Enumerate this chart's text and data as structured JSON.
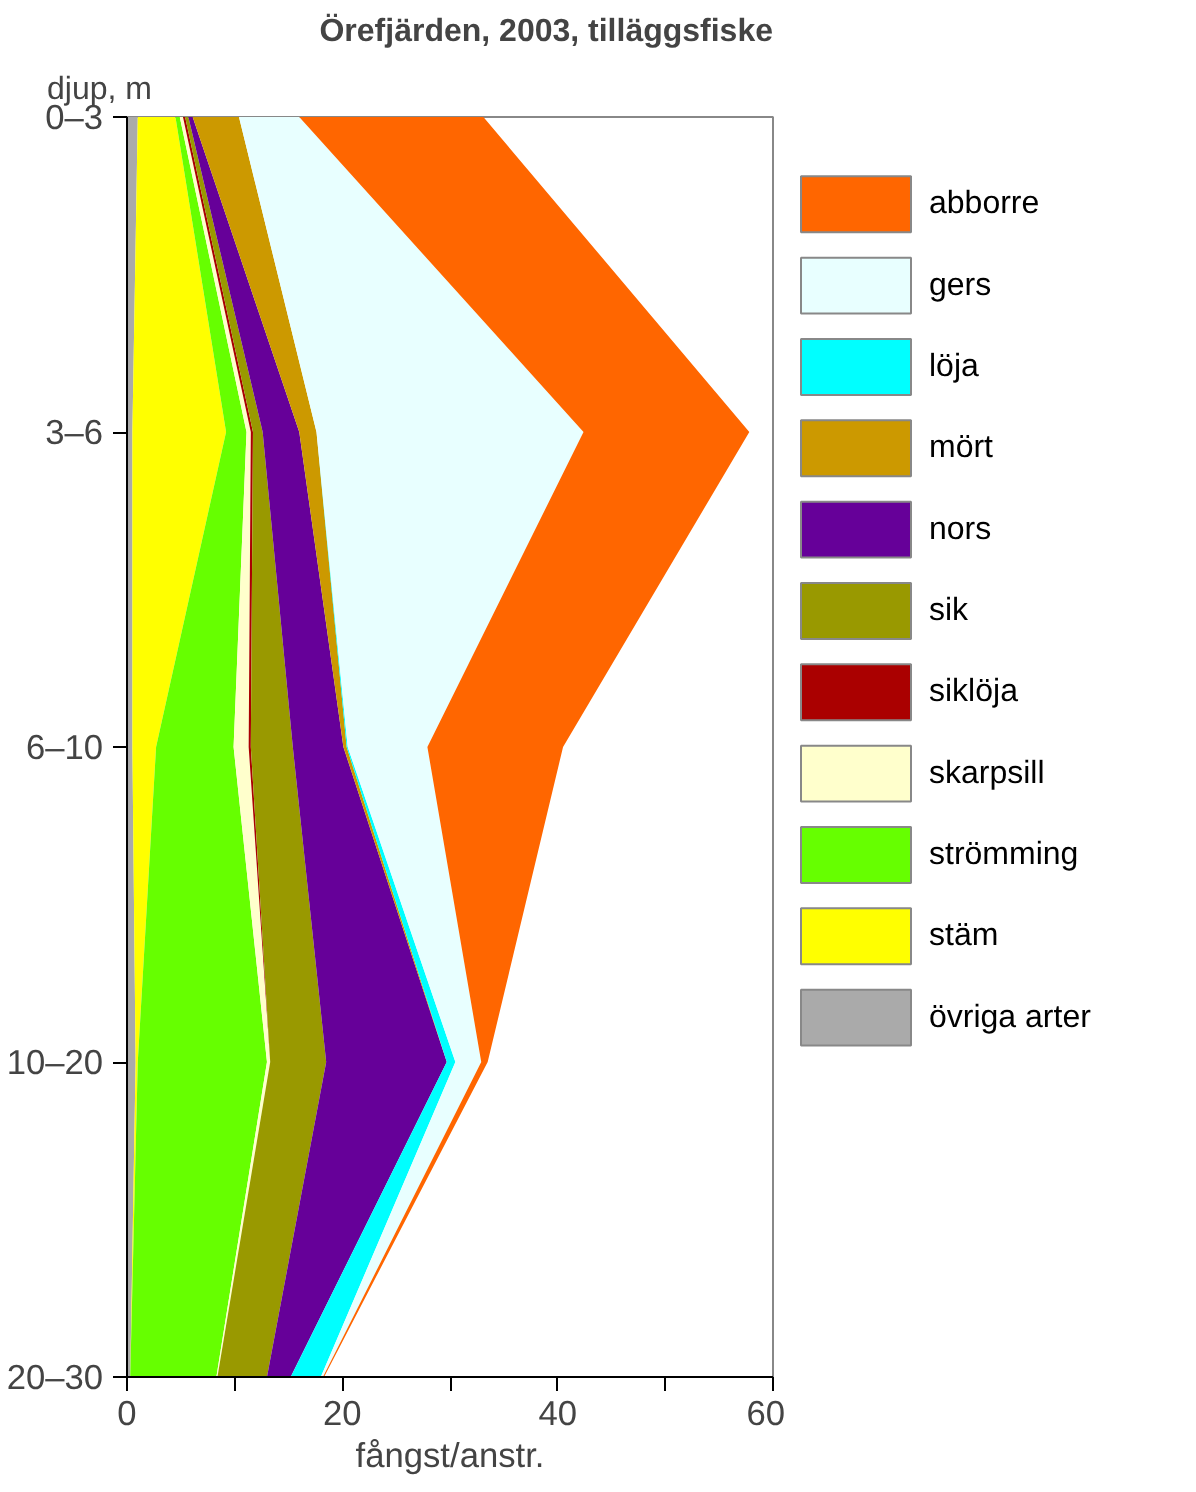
{
  "chart_data": {
    "type": "area",
    "stacked": true,
    "orientation": "horizontal",
    "title": "Örefjärden, 2003, tilläggsfiske",
    "ylabel": "djup, m",
    "xlabel": "fångst/anstr.",
    "categories": [
      "0–3",
      "3–6",
      "6–10",
      "10–20",
      "20–30"
    ],
    "xlim": [
      0,
      60
    ],
    "xticks": [
      0,
      {
        "value": 10,
        "label": null
      },
      20,
      {
        "value": 30,
        "label": null
      },
      40,
      {
        "value": 50,
        "label": null
      },
      60
    ],
    "grid": false,
    "legend": "right",
    "series": [
      {
        "name": "övriga arter",
        "color": "#aaaaaa",
        "values": [
          1.0,
          0.5,
          0.5,
          0.8,
          0.3
        ]
      },
      {
        "name": "stäm",
        "color": "#ffff00",
        "values": [
          3.5,
          8.7,
          2.2,
          0.2,
          0
        ]
      },
      {
        "name": "strömming",
        "color": "#66ff00",
        "values": [
          0.4,
          1.9,
          7.2,
          12.0,
          8.0
        ]
      },
      {
        "name": "skarpsill",
        "color": "#ffffcc",
        "values": [
          0.3,
          0.4,
          1.4,
          0.3,
          0.1
        ]
      },
      {
        "name": "siklöja",
        "color": "#aa0000",
        "values": [
          0.2,
          0.2,
          0.2,
          0,
          0
        ]
      },
      {
        "name": "sik",
        "color": "#999900",
        "values": [
          0.3,
          0.9,
          3.9,
          5.2,
          4.6
        ]
      },
      {
        "name": "nors",
        "color": "#660099",
        "values": [
          0.4,
          3.4,
          4.7,
          11.2,
          2.2
        ]
      },
      {
        "name": "mört",
        "color": "#cc9900",
        "values": [
          4.3,
          1.6,
          0.3,
          0,
          0
        ]
      },
      {
        "name": "löja",
        "color": "#00ffff",
        "values": [
          0,
          0,
          0.1,
          0.8,
          2.8
        ]
      },
      {
        "name": "gers",
        "color": "#e8ffff",
        "values": [
          5.6,
          24.8,
          7.4,
          2.4,
          0.2
        ]
      },
      {
        "name": "abborre",
        "color": "#ff6600",
        "values": [
          17.1,
          15.4,
          12.6,
          0.6,
          0.1
        ]
      }
    ]
  }
}
